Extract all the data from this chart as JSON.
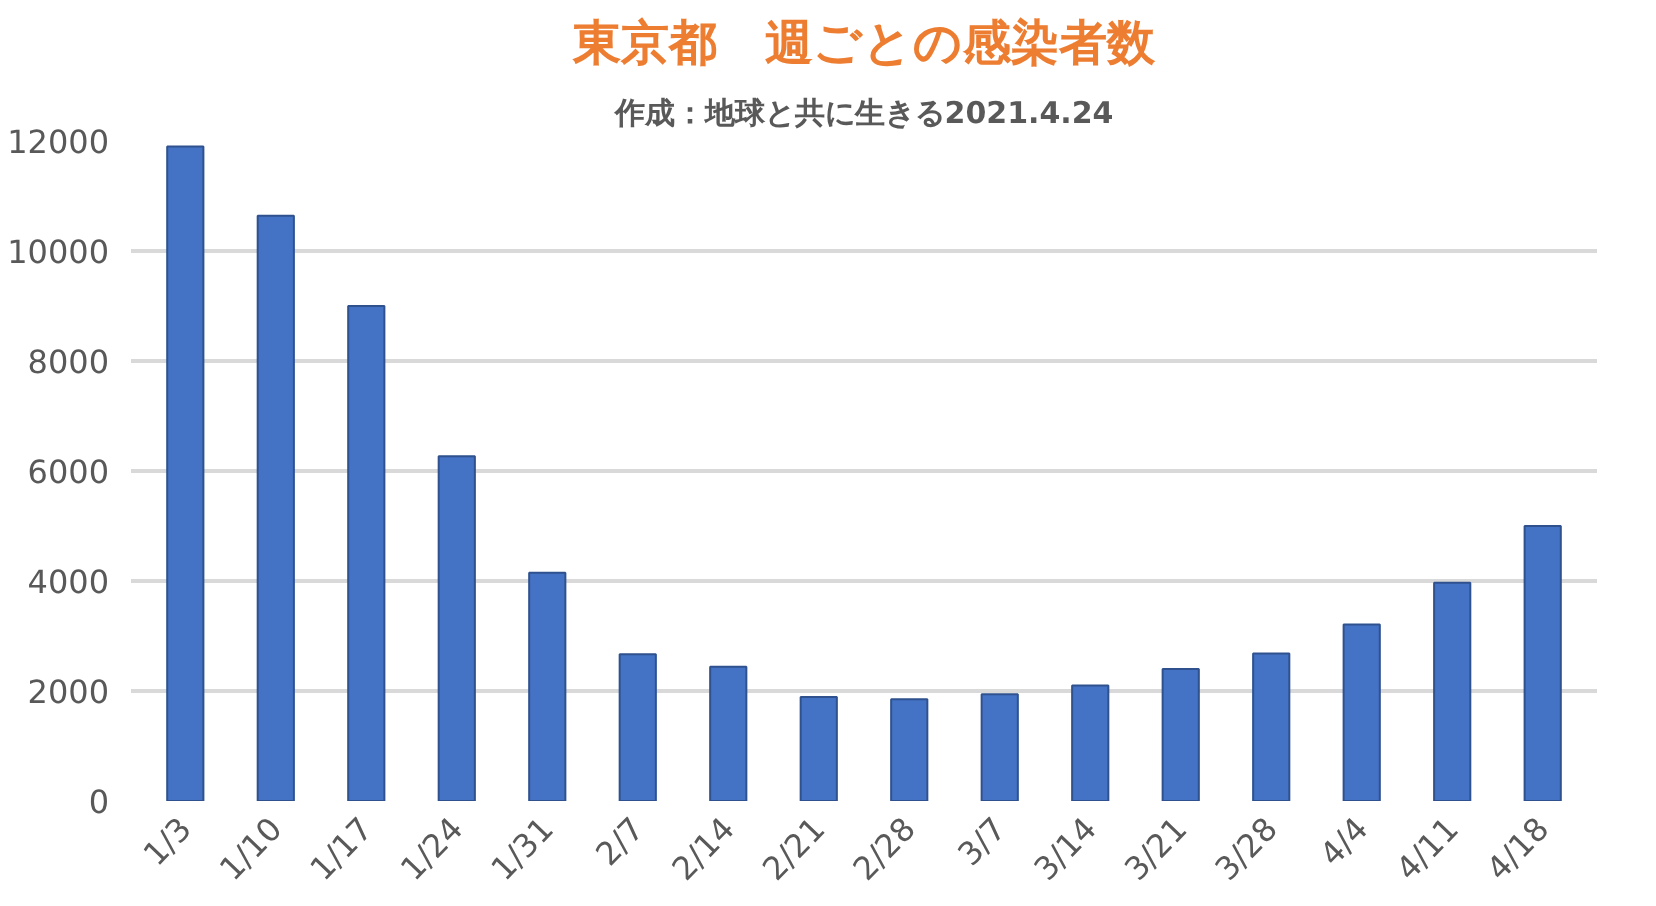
{
  "chart_data": {
    "type": "bar",
    "title": "東京都　週ごとの感染者数",
    "subtitle": "作成：地球と共に生きる2021.4.24",
    "categories": [
      "1/3",
      "1/10",
      "1/17",
      "1/24",
      "1/31",
      "2/7",
      "2/14",
      "2/21",
      "2/28",
      "3/7",
      "3/14",
      "3/21",
      "3/28",
      "4/4",
      "4/11",
      "4/18"
    ],
    "values": [
      11900,
      10640,
      9000,
      6270,
      4150,
      2670,
      2440,
      1890,
      1850,
      1940,
      2100,
      2400,
      2680,
      3210,
      3970,
      5000
    ],
    "color": "#4472c4",
    "ylim": [
      0,
      12000
    ],
    "yticks": [
      0,
      2000,
      4000,
      6000,
      8000,
      10000,
      12000
    ],
    "grid": "y"
  }
}
